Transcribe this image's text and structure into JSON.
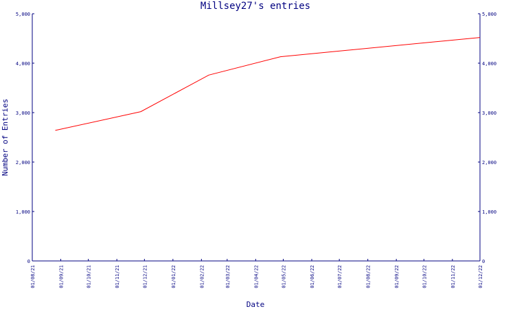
{
  "chart_data": {
    "type": "line",
    "title": "Millsey27's entries",
    "xlabel": "Date",
    "ylabel": "Number of Entries",
    "x_ticks": [
      "01/08/21",
      "01/09/21",
      "01/10/21",
      "01/11/21",
      "01/12/21",
      "01/01/22",
      "01/02/22",
      "01/03/22",
      "01/04/22",
      "01/05/22",
      "01/06/22",
      "01/07/22",
      "01/08/22",
      "01/09/22",
      "01/10/22",
      "01/11/22",
      "01/12/22"
    ],
    "y_ticks_left": [
      "0",
      "1,000",
      "2,000",
      "3,000",
      "4,000",
      "5,000"
    ],
    "y_ticks_right": [
      "0",
      "1,000",
      "2,000",
      "3,000",
      "4,000",
      "5,000"
    ],
    "ylim": [
      0,
      5000
    ],
    "xlim": [
      "01/08/21",
      "01/12/22"
    ],
    "series": [
      {
        "x": [
          "26/08/21",
          "27/11/21",
          "09/02/22",
          "28/04/22",
          "01/12/22"
        ],
        "y": [
          2640,
          3020,
          3760,
          4130,
          4520
        ]
      }
    ],
    "grid": false,
    "colors": {
      "axis": "#000080",
      "line": "#ff0000",
      "text": "#000080"
    }
  }
}
